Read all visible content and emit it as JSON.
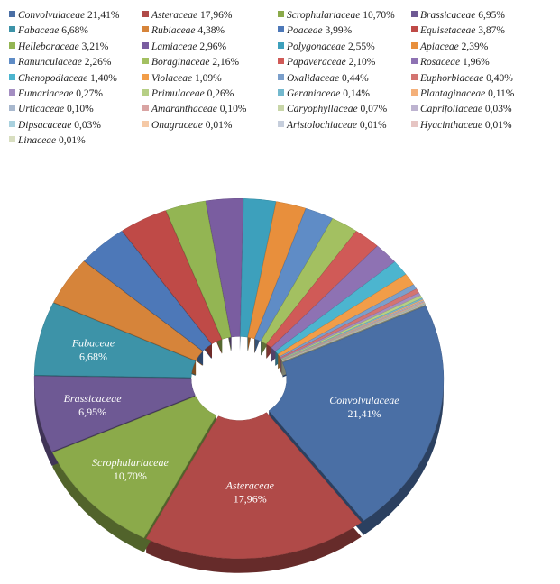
{
  "chart_data": {
    "type": "pie",
    "title": "",
    "legend_position": "top",
    "labels": [
      "Convolvulaceae",
      "Asteraceae",
      "Scrophulariaceae",
      "Brassicaceae",
      "Fabaceae",
      "Rubiaceae",
      "Poaceae",
      "Equisetaceae",
      "Helleboraceae",
      "Lamiaceae",
      "Polygonaceae",
      "Apiaceae",
      "Ranunculaceae",
      "Boraginaceae",
      "Papaveraceae",
      "Rosaceae",
      "Chenopodiaceae",
      "Violaceae",
      "Oxalidaceae",
      "Euphorbiaceae",
      "Fumariaceae",
      "Primulaceae",
      "Geraniaceae",
      "Plantaginaceae",
      "Urticaceae",
      "Amaranthaceae",
      "Caryophyllaceae",
      "Caprifoliaceae",
      "Dipsacaceae",
      "Onagraceae",
      "Aristolochiaceae",
      "Hyacinthaceae",
      "Linaceae"
    ],
    "value_labels": [
      "21,41%",
      "17,96%",
      "10,70%",
      "6,95%",
      "6,68%",
      "4,38%",
      "3,99%",
      "3,87%",
      "3,21%",
      "2,96%",
      "2,55%",
      "2,39%",
      "2,26%",
      "2,16%",
      "2,10%",
      "1,96%",
      "1,40%",
      "1,09%",
      "0,44%",
      "0,40%",
      "0,27%",
      "0,26%",
      "0,14%",
      "0,11%",
      "0,10%",
      "0,10%",
      "0,07%",
      "0,03%",
      "0,03%",
      "0,01%",
      "0,01%",
      "0,01%",
      "0,01%"
    ],
    "values": [
      21.41,
      17.96,
      10.7,
      6.95,
      6.68,
      4.38,
      3.99,
      3.87,
      3.21,
      2.96,
      2.55,
      2.39,
      2.26,
      2.16,
      2.1,
      1.96,
      1.4,
      1.09,
      0.44,
      0.4,
      0.27,
      0.26,
      0.14,
      0.11,
      0.1,
      0.1,
      0.07,
      0.03,
      0.03,
      0.01,
      0.01,
      0.01,
      0.01
    ],
    "colors": [
      "#4A6FA5",
      "#B04A48",
      "#8BAA4A",
      "#6E5994",
      "#3D93A8",
      "#D6843A",
      "#4D78B8",
      "#BF4A47",
      "#93B553",
      "#7A5DA0",
      "#3DA0BC",
      "#E88F3C",
      "#5F8CC6",
      "#A3C061",
      "#D05A57",
      "#8E72B3",
      "#4CB5CF",
      "#F29D48",
      "#7B9FCB",
      "#D37471",
      "#A48EC2",
      "#B6CF85",
      "#74B9CE",
      "#F4B07A",
      "#A8B8CE",
      "#D9A4A3",
      "#C8D6A8",
      "#BDB3D0",
      "#A9D1DE",
      "#F5C9A6",
      "#C6CEDC",
      "#E6C5C3",
      "#D8DEC0"
    ],
    "labeled_slices": [
      0,
      1,
      2,
      3,
      4
    ]
  }
}
